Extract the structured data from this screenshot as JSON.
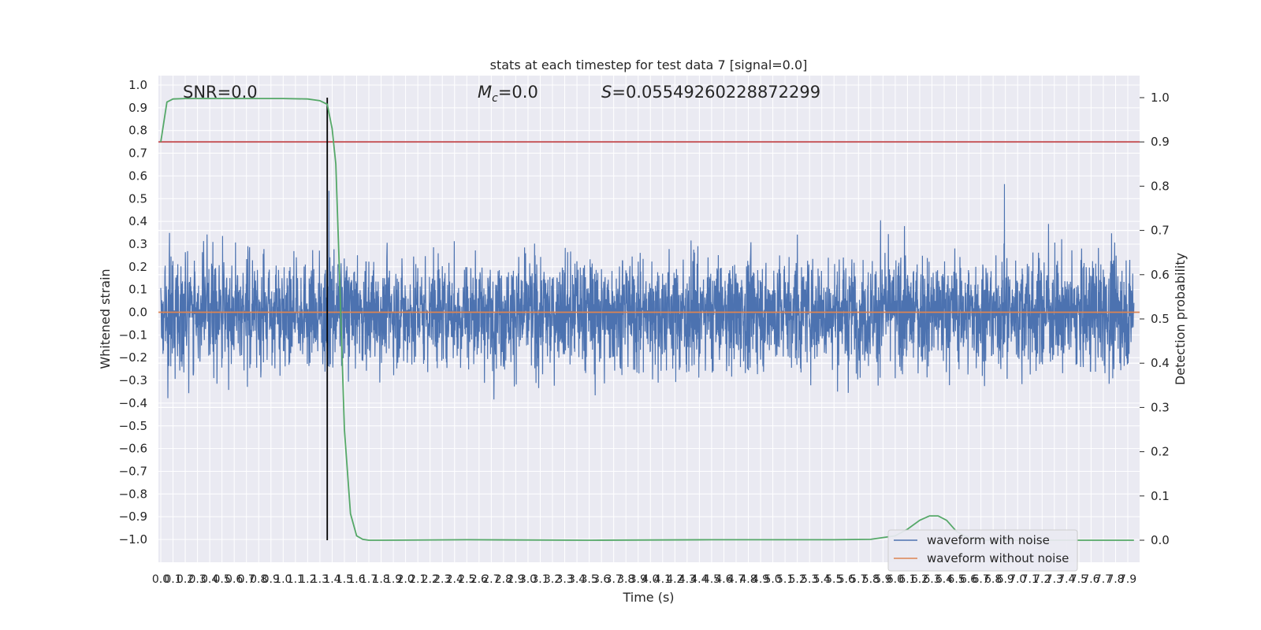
{
  "chart_data": {
    "type": "line",
    "title": "stats at each timestep for test data 7 [signal=0.0]",
    "xlabel": "Time (s)",
    "ylabel_left": "Whitened strain",
    "ylabel_right": "Detection probability",
    "xlim": [
      0.0,
      7.95
    ],
    "ylim_left": [
      -1.08,
      1.06
    ],
    "ylim_right": [
      -0.047,
      1.035
    ],
    "x_ticks": [
      "0.0",
      "0.1",
      "0.2",
      "0.3",
      "0.4",
      "0.5",
      "0.6",
      "0.7",
      "0.8",
      "0.9",
      "1.0",
      "1.1",
      "1.2",
      "1.3",
      "1.4",
      "1.5",
      "1.6",
      "1.7",
      "1.8",
      "1.9",
      "2.0",
      "2.1",
      "2.2",
      "2.3",
      "2.4",
      "2.5",
      "2.6",
      "2.7",
      "2.8",
      "2.9",
      "3.0",
      "3.1",
      "3.2",
      "3.3",
      "3.4",
      "3.5",
      "3.6",
      "3.7",
      "3.8",
      "3.9",
      "4.0",
      "4.1",
      "4.2",
      "4.3",
      "4.4",
      "4.5",
      "4.6",
      "4.7",
      "4.8",
      "4.9",
      "5.0",
      "5.1",
      "5.2",
      "5.3",
      "5.4",
      "5.5",
      "5.6",
      "5.7",
      "5.8",
      "5.9",
      "6.0",
      "6.1",
      "6.2",
      "6.3",
      "6.4",
      "6.5",
      "6.6",
      "6.7",
      "6.8",
      "6.9",
      "7.0",
      "7.1",
      "7.2",
      "7.3",
      "7.4",
      "7.5",
      "7.6",
      "7.7",
      "7.8",
      "7.9"
    ],
    "y_ticks_left": [
      "1.0",
      "0.9",
      "0.8",
      "0.7",
      "0.6",
      "0.5",
      "0.4",
      "0.3",
      "0.2",
      "0.1",
      "0.0",
      "-0.0",
      "-0.1",
      "-0.2",
      "-0.3",
      "-0.4",
      "-0.5",
      "-0.6",
      "-0.7",
      "-0.8",
      "-0.9",
      "-1.0"
    ],
    "y_ticks_right": [
      "1.0",
      "0.9",
      "0.8",
      "0.7",
      "0.6",
      "0.5",
      "0.4",
      "0.3",
      "0.2",
      "0.1",
      "0.0"
    ],
    "annotations": {
      "snr": "SNR=0.0",
      "mc": "M",
      "mc_sub": "c",
      "mc_val": "=0.0",
      "s": "S",
      "s_val": "=0.05549260228872299"
    },
    "series": [
      {
        "name": "waveform with noise",
        "color": "#4c72b0",
        "note": "dense noise trace, amplitude within approximately [-0.95, 0.95]"
      },
      {
        "name": "waveform without noise",
        "color": "#dd8452",
        "values_constant": 0.0
      }
    ],
    "detection_probability": {
      "color": "#55a868",
      "x": [
        0.0,
        0.05,
        0.1,
        0.2,
        0.5,
        1.0,
        1.2,
        1.3,
        1.36,
        1.4,
        1.43,
        1.46,
        1.5,
        1.55,
        1.6,
        1.65,
        1.7,
        1.8,
        2.5,
        3.5,
        4.5,
        5.5,
        5.8,
        6.0,
        6.1,
        6.2,
        6.28,
        6.35,
        6.42,
        6.5,
        6.6,
        6.7,
        6.8,
        7.0,
        7.95
      ],
      "y": [
        0.9,
        0.99,
        0.997,
        0.998,
        0.998,
        0.998,
        0.997,
        0.993,
        0.985,
        0.93,
        0.85,
        0.6,
        0.25,
        0.06,
        0.01,
        0.002,
        0.0,
        0.0,
        0.001,
        0.0,
        0.001,
        0.001,
        0.002,
        0.01,
        0.025,
        0.045,
        0.055,
        0.055,
        0.045,
        0.02,
        0.005,
        0.001,
        0.0,
        0.0,
        0.0
      ]
    },
    "threshold_right": 0.9,
    "threshold_color": "#c44e52",
    "vline_x": 1.36,
    "vline_color": "#000000",
    "grid": true,
    "legend": {
      "placement": "lower-right",
      "entries": [
        "waveform with noise",
        "waveform without noise"
      ]
    }
  }
}
